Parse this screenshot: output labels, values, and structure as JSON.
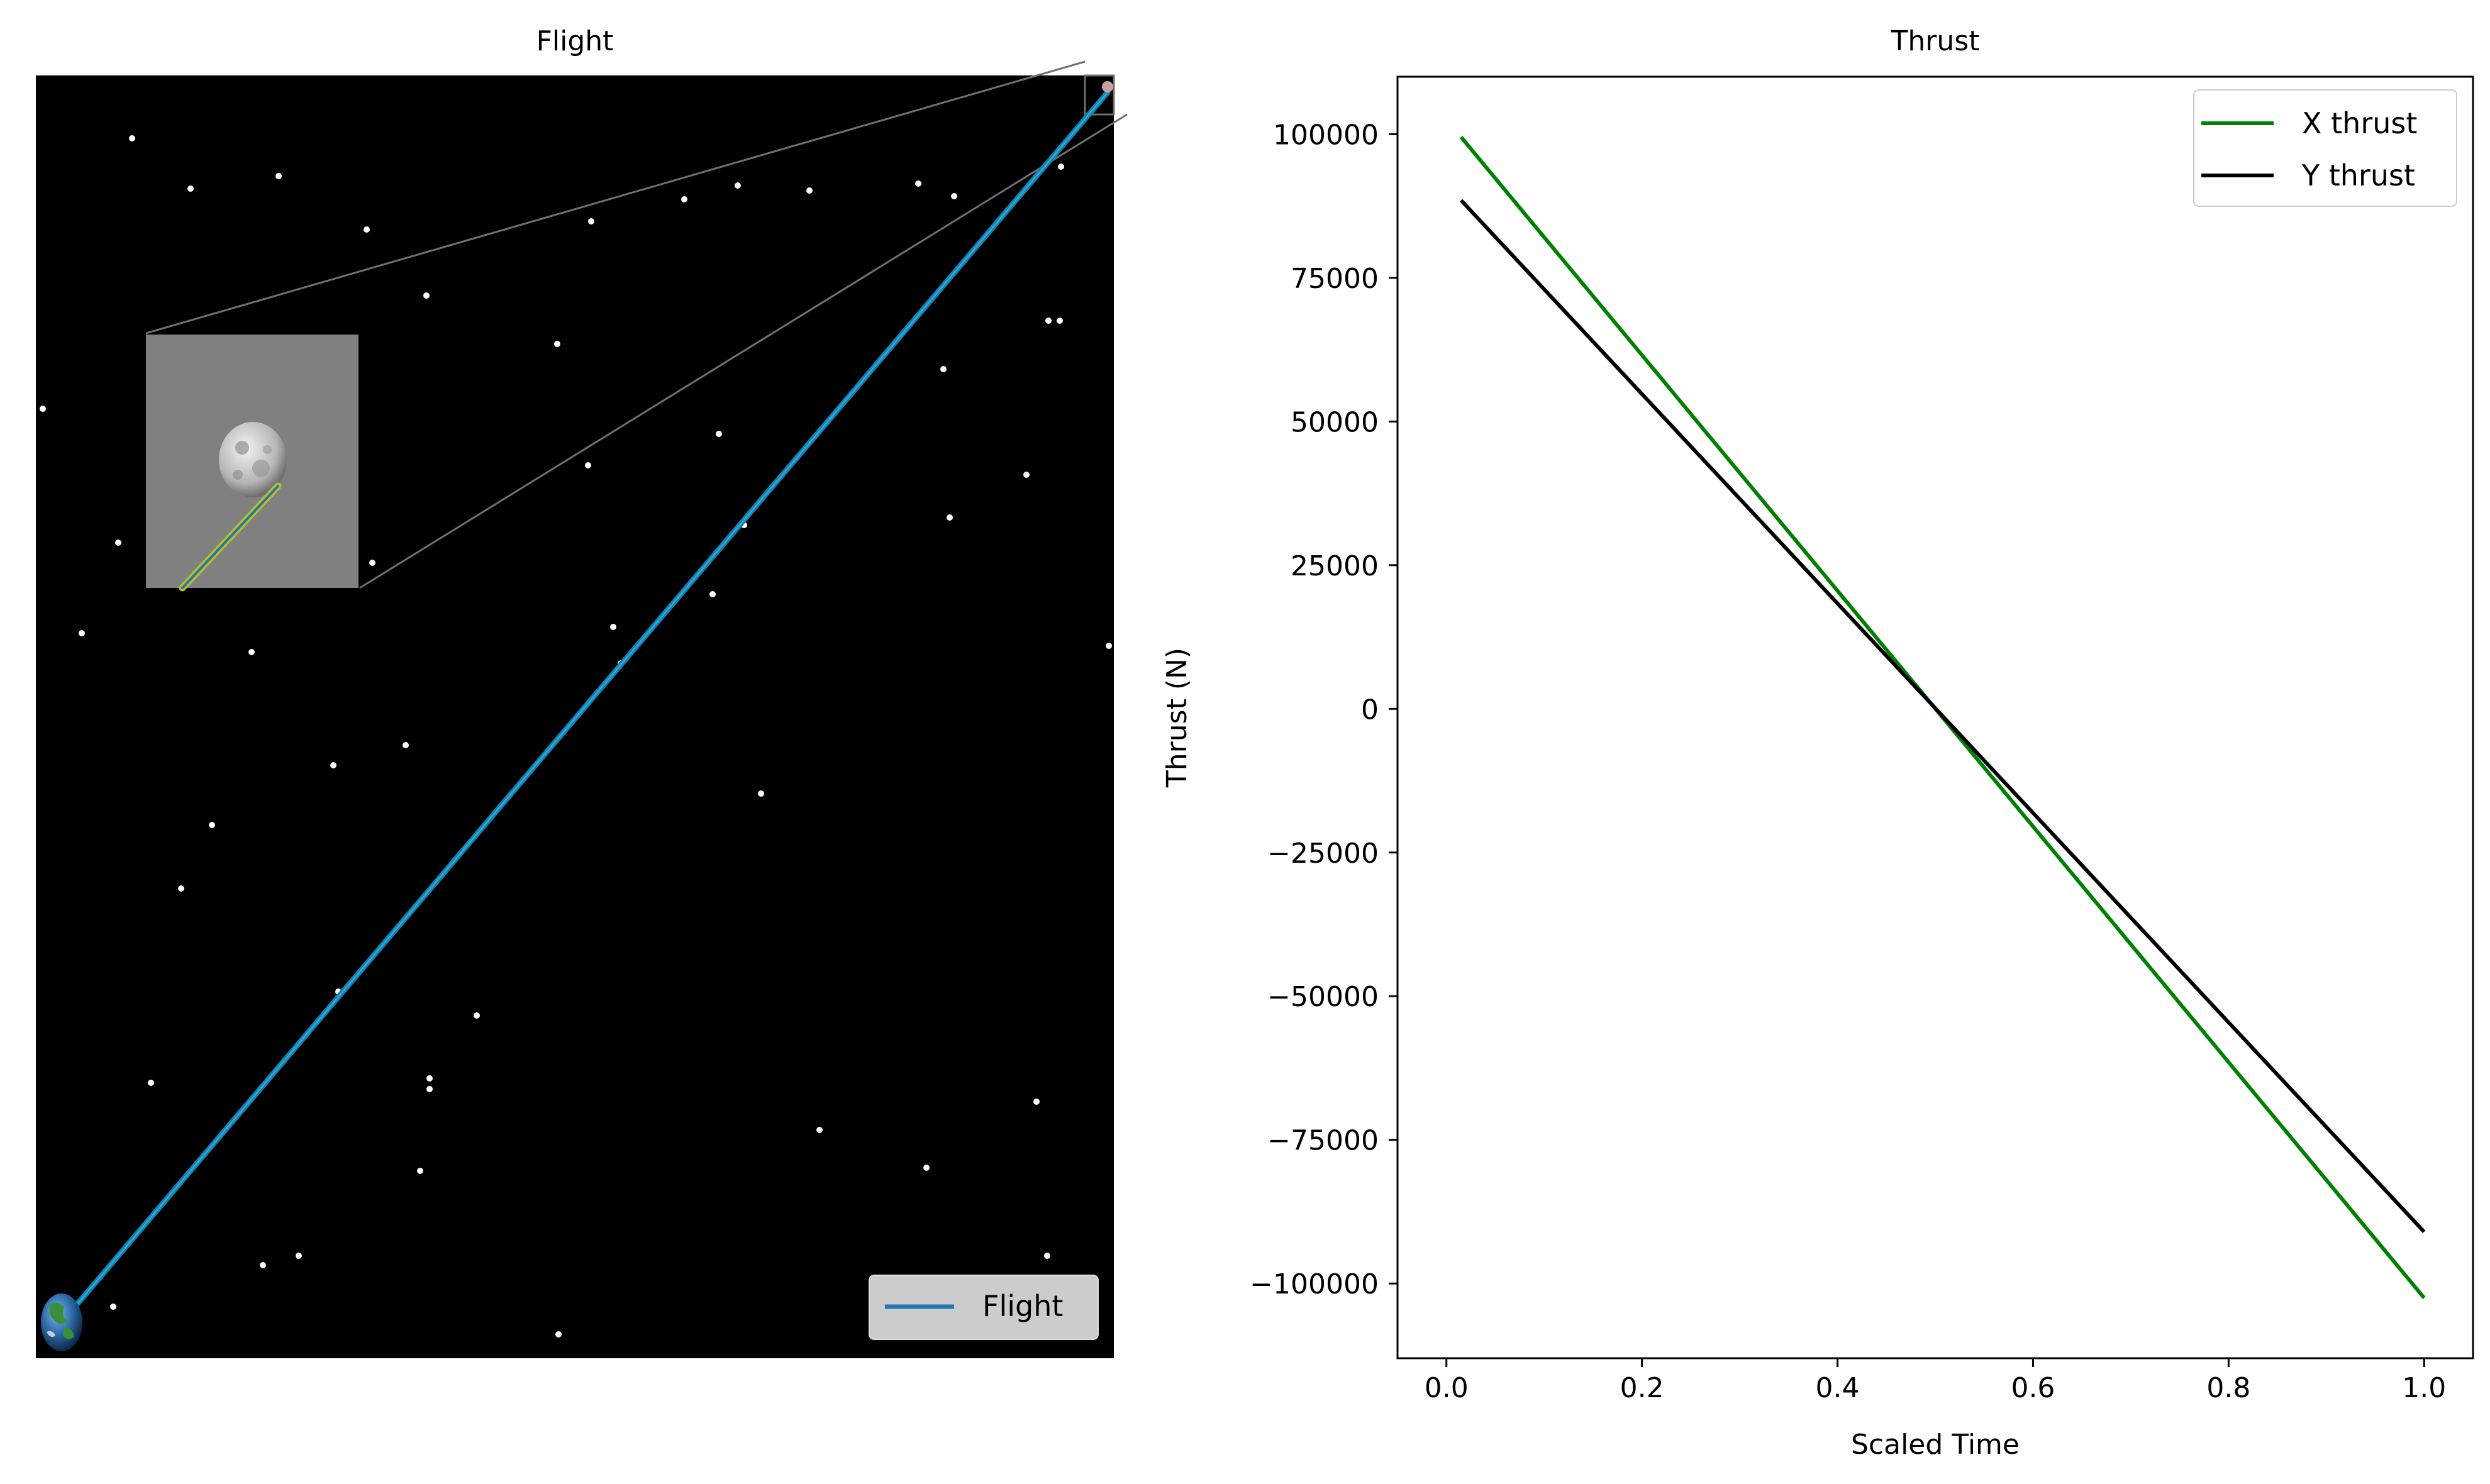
{
  "chart_data": [
    {
      "type": "line",
      "title": "Flight",
      "background": "#000000",
      "axes_visible": false,
      "xlim": [
        0,
        1
      ],
      "ylim": [
        0,
        1
      ],
      "series": [
        {
          "name": "Flight",
          "color": "#1f77b4",
          "x": [
            0.0,
            1.0
          ],
          "y": [
            0.0,
            1.0
          ]
        }
      ],
      "legend": {
        "placement": "bottom-right",
        "entries": [
          "Flight"
        ]
      },
      "decorations": {
        "start_body": "earth-icon",
        "end_body": "moon-icon",
        "star_field": "white-dots",
        "inset": "zoom-on-moon-endpoint",
        "inset_background": "#808080",
        "inset_path_colors": [
          "#bcbd22",
          "#1f77b4"
        ]
      }
    },
    {
      "type": "line",
      "title": "Thrust",
      "xlabel": "Scaled Time",
      "ylabel": "Thrust (N)",
      "xlim": [
        -0.05,
        1.05
      ],
      "ylim": [
        -113000,
        110000
      ],
      "xticks": [
        0.0,
        0.2,
        0.4,
        0.6,
        0.8,
        1.0
      ],
      "xtick_labels": [
        "0.0",
        "0.2",
        "0.4",
        "0.6",
        "0.8",
        "1.0"
      ],
      "yticks": [
        100000,
        75000,
        50000,
        25000,
        0,
        -25000,
        -50000,
        -75000,
        -100000
      ],
      "ytick_labels": [
        "100000",
        "75000",
        "50000",
        "25000",
        "0",
        "−25000",
        "−50000",
        "−75000",
        "−100000"
      ],
      "grid": false,
      "legend": {
        "placement": "top-right"
      },
      "series": [
        {
          "name": "X thrust",
          "color": "#008000",
          "x": [
            0.015,
            1.0
          ],
          "y": [
            99500,
            -102500
          ]
        },
        {
          "name": "Y thrust",
          "color": "#000000",
          "x": [
            0.015,
            1.0
          ],
          "y": [
            88500,
            -91000
          ]
        }
      ]
    }
  ]
}
